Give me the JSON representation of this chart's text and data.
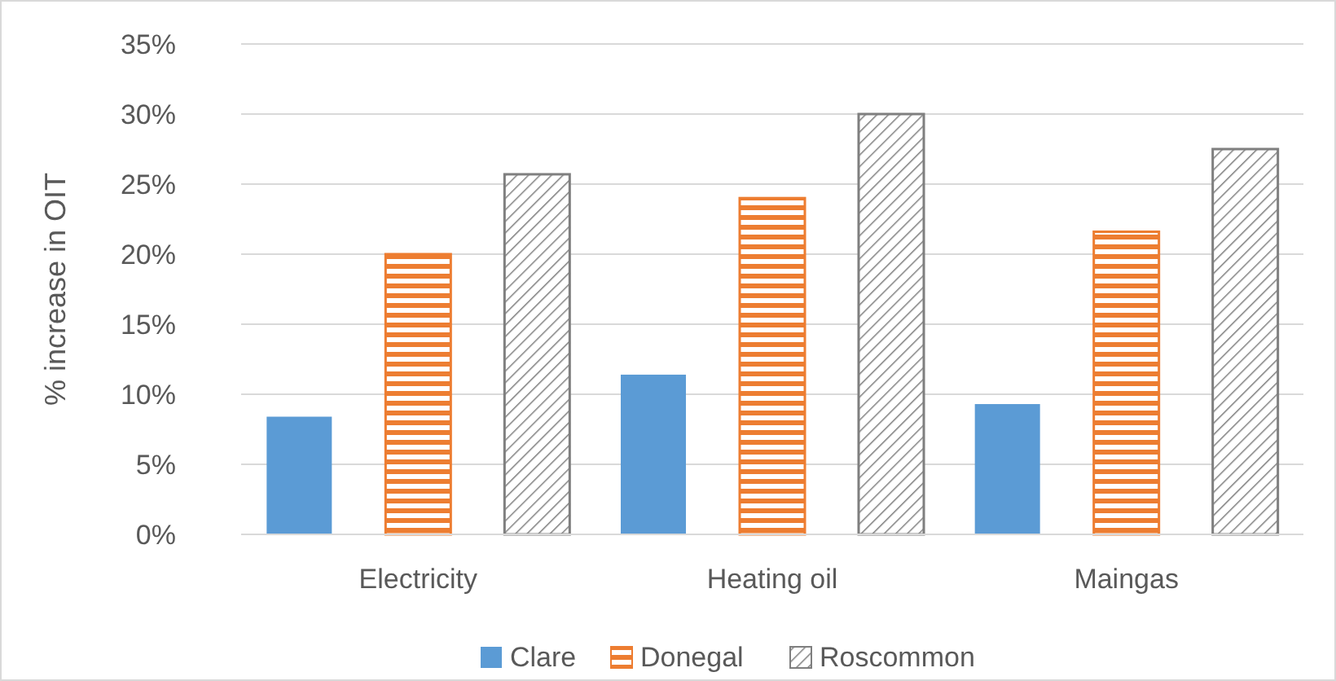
{
  "chart_data": {
    "type": "bar",
    "ylabel": "% increase in OIT",
    "categories": [
      "Electricity",
      "Heating oil",
      "Maingas"
    ],
    "series": [
      {
        "name": "Clare",
        "color": "#5b9bd5",
        "values": [
          8.4,
          11.4,
          9.3
        ]
      },
      {
        "name": "Donegal",
        "color": "#ed7d31",
        "values": [
          20,
          24,
          21.6
        ]
      },
      {
        "name": "Roscommon",
        "color": "#7f7f7f",
        "values": [
          25.7,
          30,
          27.5
        ]
      }
    ],
    "ylim": [
      0,
      35
    ],
    "yticks": [
      {
        "value": 0,
        "label": "0%"
      },
      {
        "value": 5,
        "label": "5%"
      },
      {
        "value": 10,
        "label": "10%"
      },
      {
        "value": 15,
        "label": "15%"
      },
      {
        "value": 20,
        "label": "20%"
      },
      {
        "value": 25,
        "label": "25%"
      },
      {
        "value": 30,
        "label": "30%"
      },
      {
        "value": 35,
        "label": "35%"
      }
    ],
    "grid": "y",
    "legend": "bottom"
  }
}
